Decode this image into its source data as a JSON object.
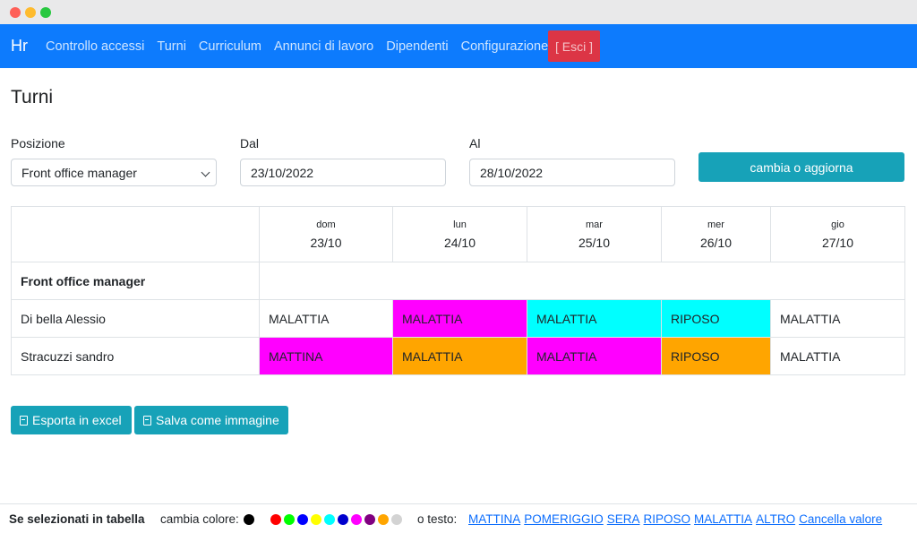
{
  "nav": {
    "brand": "Hr",
    "links": [
      "Controllo accessi",
      "Turni",
      "Curriculum",
      "Annunci di lavoro",
      "Dipendenti",
      "Configurazione"
    ],
    "logout": "[ Esci ]"
  },
  "page_title": "Turni",
  "filters": {
    "position_label": "Posizione",
    "position_value": "Front office manager",
    "from_label": "Dal",
    "from_value": "23/10/2022",
    "to_label": "Al",
    "to_value": "28/10/2022",
    "update_button": "cambia o aggiorna"
  },
  "table": {
    "days": [
      {
        "name": "dom",
        "date": "23/10"
      },
      {
        "name": "lun",
        "date": "24/10"
      },
      {
        "name": "mar",
        "date": "25/10"
      },
      {
        "name": "mer",
        "date": "26/10"
      },
      {
        "name": "gio",
        "date": "27/10"
      }
    ],
    "group_label": "Front office manager",
    "rows": [
      {
        "employee": "Di bella Alessio",
        "shifts": [
          {
            "text": "MALATTIA",
            "color": "#ffffff"
          },
          {
            "text": "MALATTIA",
            "color": "#ff00ff"
          },
          {
            "text": "MALATTIA",
            "color": "#00ffff"
          },
          {
            "text": "RIPOSO",
            "color": "#00ffff"
          },
          {
            "text": "MALATTIA",
            "color": "#ffffff"
          }
        ]
      },
      {
        "employee": "Stracuzzi sandro",
        "shifts": [
          {
            "text": "MATTINA",
            "color": "#ff00ff"
          },
          {
            "text": "MALATTIA",
            "color": "#ffa500"
          },
          {
            "text": "MALATTIA",
            "color": "#ff00ff"
          },
          {
            "text": "RIPOSO",
            "color": "#ffa500"
          },
          {
            "text": "MALATTIA",
            "color": "#ffffff"
          }
        ]
      }
    ]
  },
  "actions": {
    "export_excel": "Esporta in excel",
    "save_image": "Salva come immagine"
  },
  "footer": {
    "title": "Se selezionati in tabella",
    "change_color": "cambia colore:",
    "colors": [
      "#000000",
      "#ff0000",
      "#00ff00",
      "#0000ff",
      "#ffff00",
      "#00ffff",
      "#0000cd",
      "#ff00ff",
      "#800080",
      "#ffa500",
      "#d3d3d3"
    ],
    "or_text": "o testo:",
    "text_options": [
      "MATTINA",
      "POMERIGGIO",
      "SERA",
      "RIPOSO",
      "MALATTIA",
      "ALTRO",
      "Cancella valore"
    ]
  }
}
